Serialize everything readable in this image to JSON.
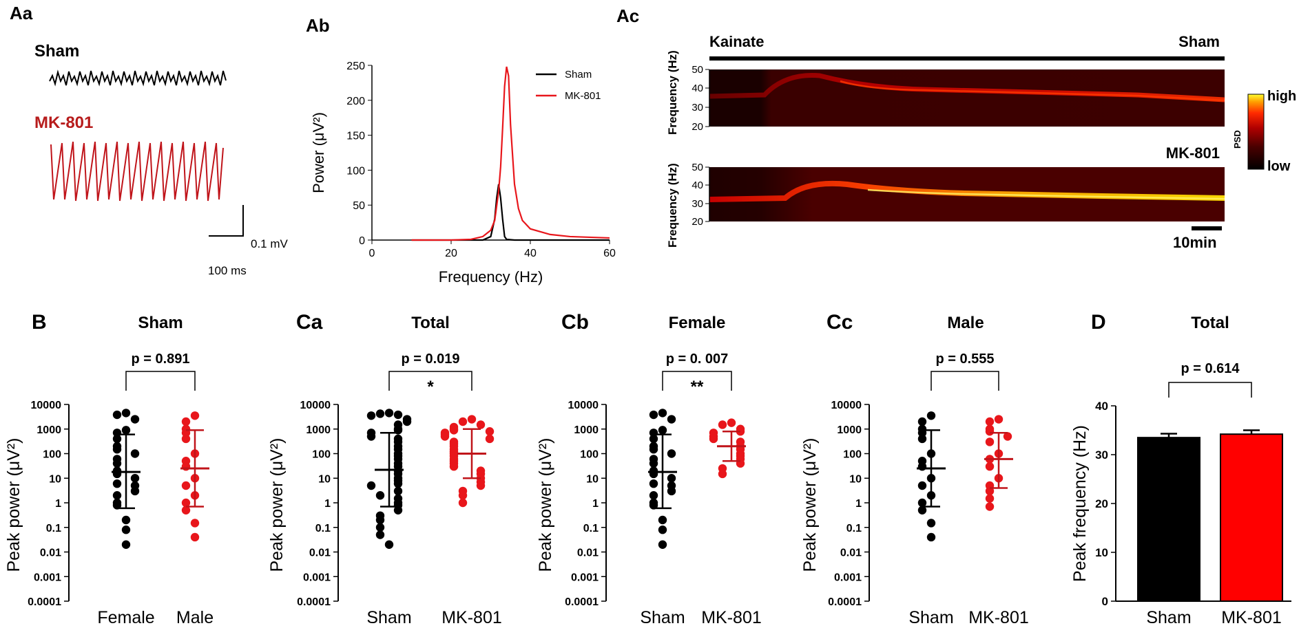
{
  "colors": {
    "sham": "#000000",
    "mk801": "#e8161b",
    "mk801_dark": "#c0141a",
    "mk801_text": "#b71c1c"
  },
  "panels": {
    "Aa": {
      "label": "Aa",
      "sham_label": "Sham",
      "mk_label": "MK-801",
      "scale_v": "0.1 mV",
      "scale_t": "100 ms"
    },
    "Ab": {
      "label": "Ab"
    },
    "Ac": {
      "label": "Ac",
      "kainate": "Kainate",
      "sham": "Sham",
      "mk": "MK-801",
      "ylabel": "Frequency (Hz)",
      "yticks": [
        "50",
        "40",
        "30",
        "20"
      ],
      "scalebar": "10min",
      "colorbar": {
        "high": "high",
        "low": "low",
        "label": "PSD"
      }
    }
  },
  "chart_data": [
    {
      "id": "Ab",
      "type": "line",
      "title": "",
      "xlabel": "Frequency (Hz)",
      "ylabel": "Power (μV²)",
      "xlim": [
        0,
        60
      ],
      "ylim": [
        0,
        250
      ],
      "xticks": [
        0,
        20,
        40,
        60
      ],
      "yticks": [
        0,
        50,
        100,
        150,
        200,
        250
      ],
      "legend_position": "top-right",
      "series": [
        {
          "name": "Sham",
          "color": "#000000",
          "x": [
            10,
            28,
            30,
            31,
            31.5,
            32,
            32.5,
            33,
            33.5,
            34,
            36,
            60
          ],
          "y": [
            0,
            0,
            5,
            30,
            60,
            80,
            60,
            30,
            5,
            1,
            0,
            0
          ]
        },
        {
          "name": "MK-801",
          "color": "#e8161b",
          "x": [
            10,
            20,
            25,
            28,
            30,
            31,
            32,
            32.5,
            33,
            33.5,
            34,
            34.5,
            35,
            36,
            37,
            38,
            40,
            45,
            50,
            55,
            60
          ],
          "y": [
            0,
            0,
            1,
            5,
            14,
            28,
            70,
            105,
            160,
            220,
            248,
            235,
            165,
            80,
            45,
            28,
            16,
            8,
            5,
            4,
            3
          ]
        }
      ]
    },
    {
      "id": "B",
      "label": "B",
      "type": "scatter",
      "title": "Sham",
      "ylabel": "Peak power (μV²)",
      "yscale": "log",
      "ylim": [
        0.0001,
        10000
      ],
      "yticks": [
        "0.0001",
        "0.001",
        "0.01",
        "0.1",
        "1",
        "10",
        "100",
        "1000",
        "10000"
      ],
      "categories": [
        "Female",
        "Male"
      ],
      "pvalue": "p = 0.891",
      "significance": "",
      "groups": [
        {
          "name": "Female",
          "color": "#000000",
          "mean": 18,
          "lower": 0.6,
          "upper": 600,
          "points": [
            4500,
            3800,
            2500,
            900,
            700,
            400,
            200,
            150,
            100,
            60,
            40,
            20,
            15,
            10,
            6,
            5,
            3,
            2,
            1,
            0.8,
            0.2,
            0.08,
            0.02
          ]
        },
        {
          "name": "Male",
          "color": "#e8161b",
          "mean": 25,
          "lower": 0.7,
          "upper": 900,
          "points": [
            3500,
            2000,
            1000,
            700,
            400,
            100,
            50,
            30,
            10,
            5,
            2,
            1,
            0.5,
            0.15,
            0.04
          ]
        }
      ]
    },
    {
      "id": "Ca",
      "label": "Ca",
      "type": "scatter",
      "title": "Total",
      "ylabel": "Peak power (μV²)",
      "yscale": "log",
      "ylim": [
        0.0001,
        10000
      ],
      "yticks": [
        "0.0001",
        "0.001",
        "0.01",
        "0.1",
        "1",
        "10",
        "100",
        "1000",
        "10000"
      ],
      "categories": [
        "Sham",
        "MK-801"
      ],
      "pvalue": "p = 0.019",
      "significance": "*",
      "groups": [
        {
          "name": "Sham",
          "color": "#000000",
          "mean": 22,
          "lower": 0.7,
          "upper": 700,
          "points": [
            4500,
            4200,
            3800,
            3500,
            2500,
            2000,
            1500,
            1000,
            900,
            700,
            500,
            400,
            300,
            200,
            150,
            100,
            80,
            60,
            40,
            30,
            20,
            15,
            10,
            8,
            6,
            5,
            3,
            2,
            1.5,
            1,
            0.8,
            0.5,
            0.3,
            0.2,
            0.1,
            0.05,
            0.02
          ]
        },
        {
          "name": "MK-801",
          "color": "#e8161b",
          "mean": 100,
          "lower": 10,
          "upper": 1000,
          "points": [
            2500,
            2000,
            1500,
            1200,
            1000,
            900,
            800,
            700,
            600,
            500,
            400,
            300,
            250,
            200,
            150,
            120,
            100,
            80,
            60,
            50,
            40,
            30,
            20,
            15,
            10,
            7,
            5,
            3,
            2,
            1
          ]
        }
      ]
    },
    {
      "id": "Cb",
      "label": "Cb",
      "type": "scatter",
      "title": "Female",
      "ylabel": "Peak power (μV²)",
      "yscale": "log",
      "ylim": [
        0.0001,
        10000
      ],
      "yticks": [
        "0.0001",
        "0.001",
        "0.01",
        "0.1",
        "1",
        "10",
        "100",
        "1000",
        "10000"
      ],
      "categories": [
        "Sham",
        "MK-801"
      ],
      "pvalue": "p = 0. 007",
      "significance": "**",
      "groups": [
        {
          "name": "Sham",
          "color": "#000000",
          "mean": 18,
          "lower": 0.6,
          "upper": 600,
          "points": [
            4500,
            3800,
            2500,
            900,
            700,
            400,
            200,
            150,
            100,
            60,
            40,
            20,
            15,
            10,
            6,
            5,
            3,
            2,
            1,
            0.8,
            0.2,
            0.08,
            0.02
          ]
        },
        {
          "name": "MK-801",
          "color": "#e8161b",
          "mean": 200,
          "lower": 50,
          "upper": 800,
          "points": [
            1800,
            1500,
            1000,
            800,
            700,
            500,
            400,
            300,
            200,
            150,
            100,
            80,
            60,
            40,
            25,
            15
          ]
        }
      ]
    },
    {
      "id": "Cc",
      "label": "Cc",
      "type": "scatter",
      "title": "Male",
      "ylabel": "Peak power (μV²)",
      "yscale": "log",
      "ylim": [
        0.0001,
        10000
      ],
      "yticks": [
        "0.0001",
        "0.001",
        "0.01",
        "0.1",
        "1",
        "10",
        "100",
        "1000",
        "10000"
      ],
      "categories": [
        "Sham",
        "MK-801"
      ],
      "pvalue": "p = 0.555",
      "significance": "",
      "groups": [
        {
          "name": "Sham",
          "color": "#000000",
          "mean": 25,
          "lower": 0.7,
          "upper": 900,
          "points": [
            3500,
            2000,
            1000,
            700,
            400,
            100,
            50,
            30,
            10,
            5,
            2,
            1,
            0.5,
            0.15,
            0.04
          ]
        },
        {
          "name": "MK-801",
          "color": "#e8161b",
          "mean": 60,
          "lower": 4,
          "upper": 700,
          "points": [
            2500,
            2000,
            1000,
            800,
            500,
            300,
            100,
            60,
            30,
            10,
            5,
            3,
            1.5,
            0.7
          ]
        }
      ]
    },
    {
      "id": "D",
      "label": "D",
      "type": "bar",
      "title": "Total",
      "ylabel": "Peak frequency (Hz)",
      "ylim": [
        0,
        40
      ],
      "yticks": [
        0,
        10,
        20,
        30,
        40
      ],
      "categories": [
        "Sham",
        "MK-801"
      ],
      "values": [
        33.5,
        34.2
      ],
      "errors": [
        0.8,
        0.8
      ],
      "colors": [
        "#000000",
        "#ff0000"
      ],
      "pvalue": "p = 0.614"
    }
  ]
}
